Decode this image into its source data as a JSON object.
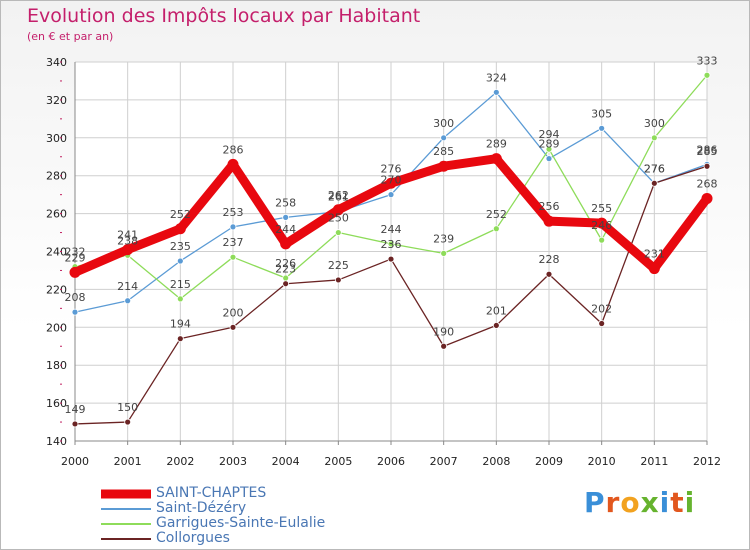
{
  "header": {
    "title": "Evolution des Impôts locaux par Habitant",
    "subtitle": "(en € et par an)"
  },
  "logo": {
    "text": "Proxiti",
    "letter_colors": [
      "#3a8fd8",
      "#e2571e",
      "#f2a21f",
      "#66b32e",
      "#3a8fd8",
      "#e2571e",
      "#66b32e"
    ]
  },
  "chart_data": {
    "type": "line",
    "title": "Evolution des Impôts locaux par Habitant",
    "subtitle": "(en € et par an)",
    "x": [
      2000,
      2001,
      2002,
      2003,
      2004,
      2005,
      2006,
      2007,
      2008,
      2009,
      2010,
      2011,
      2012
    ],
    "ylim": [
      140,
      340
    ],
    "yticks": [
      140,
      160,
      180,
      200,
      220,
      240,
      260,
      280,
      300,
      320,
      340
    ],
    "grid": true,
    "legend_position": "bottom-left",
    "series": [
      {
        "name": "SAINT-CHAPTES",
        "color": "#e8080f",
        "emphasis": true,
        "values": [
          229,
          241,
          252,
          286,
          244,
          262,
          276,
          285,
          289,
          256,
          255,
          231,
          268
        ]
      },
      {
        "name": "Saint-Dézéry",
        "color": "#5b9bd5",
        "emphasis": false,
        "values": [
          208,
          214,
          235,
          253,
          258,
          261,
          270,
          300,
          324,
          289,
          305,
          276,
          286
        ]
      },
      {
        "name": "Garrigues-Sainte-Eulalie",
        "color": "#8edc5a",
        "emphasis": false,
        "values": [
          232,
          238,
          215,
          237,
          226,
          250,
          244,
          239,
          252,
          294,
          246,
          300,
          333
        ]
      },
      {
        "name": "Collorgues",
        "color": "#6b2424",
        "emphasis": false,
        "values": [
          149,
          150,
          194,
          200,
          223,
          225,
          236,
          190,
          201,
          228,
          202,
          276,
          285
        ]
      }
    ]
  }
}
